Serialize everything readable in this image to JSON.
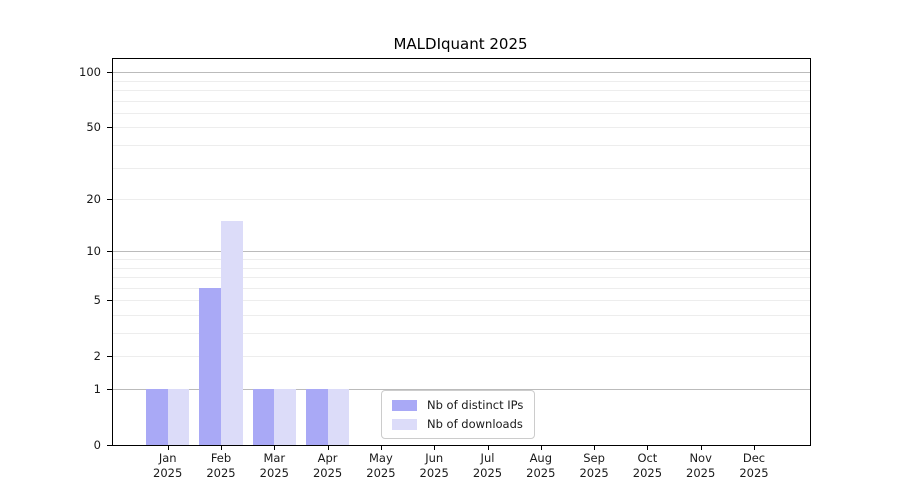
{
  "figure": {
    "title": "MALDIquant 2025"
  },
  "chart_data": {
    "type": "bar",
    "title": "MALDIquant 2025",
    "categories": [
      "Jan",
      "Feb",
      "Mar",
      "Apr",
      "May",
      "Jun",
      "Jul",
      "Aug",
      "Sep",
      "Oct",
      "Nov",
      "Dec"
    ],
    "x_sublabel": "2025",
    "series": [
      {
        "name": "Nb of distinct IPs",
        "color": "#a9a9f6",
        "values": [
          1,
          6,
          1,
          1,
          0,
          0,
          0,
          0,
          0,
          0,
          0,
          0
        ]
      },
      {
        "name": "Nb of downloads",
        "color": "#dcdcf9",
        "values": [
          1,
          15,
          1,
          1,
          0,
          0,
          0,
          0,
          0,
          0,
          0,
          0
        ]
      }
    ],
    "y_scale": "log1p",
    "ylim": [
      0,
      118
    ],
    "y_major_ticks": [
      0,
      1,
      2,
      5,
      10,
      20,
      50,
      100
    ],
    "grid": {
      "major_values": [
        1,
        10,
        100
      ],
      "minor_values": [
        2,
        3,
        4,
        5,
        6,
        7,
        8,
        9,
        20,
        30,
        40,
        50,
        60,
        70,
        80,
        90
      ],
      "major_color": "#bbbbbb",
      "minor_color": "#ededed"
    },
    "legend": {
      "position": "bottom-center-inside",
      "items": [
        "Nb of distinct IPs",
        "Nb of downloads"
      ]
    }
  },
  "colors": {
    "background": "#ffffff",
    "axis": "#000000",
    "text": "#1a1a1a"
  }
}
